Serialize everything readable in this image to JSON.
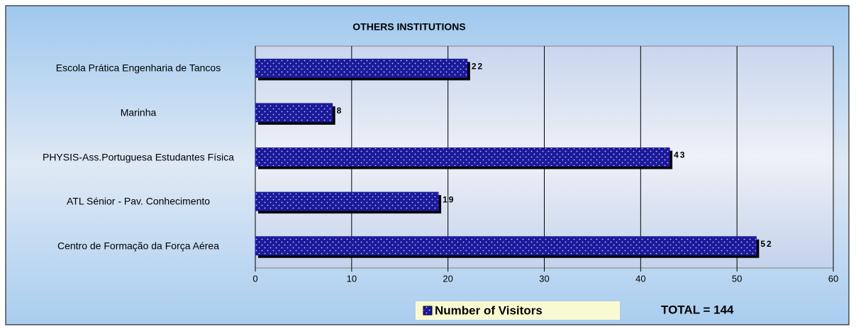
{
  "chart_data": {
    "type": "bar",
    "orientation": "horizontal",
    "title": "OTHERS INSTITUTIONS",
    "categories": [
      "Escola Prática Engenharia de Tancos",
      "Marinha",
      "PHYSIS-Ass.Portuguesa Estudantes Física",
      "ATL Sénior - Pav. Conhecimento",
      "Centro de Formação da Força Aérea"
    ],
    "series": [
      {
        "name": "Number of Visitors",
        "color": "#1a1a9a",
        "values": [
          22,
          8,
          43,
          19,
          52
        ]
      }
    ],
    "xlim": [
      0,
      60
    ],
    "xticks": [
      0,
      10,
      20,
      30,
      40,
      50,
      60
    ],
    "grid": true,
    "annotation": "TOTAL = 144",
    "legend": "bottom"
  }
}
